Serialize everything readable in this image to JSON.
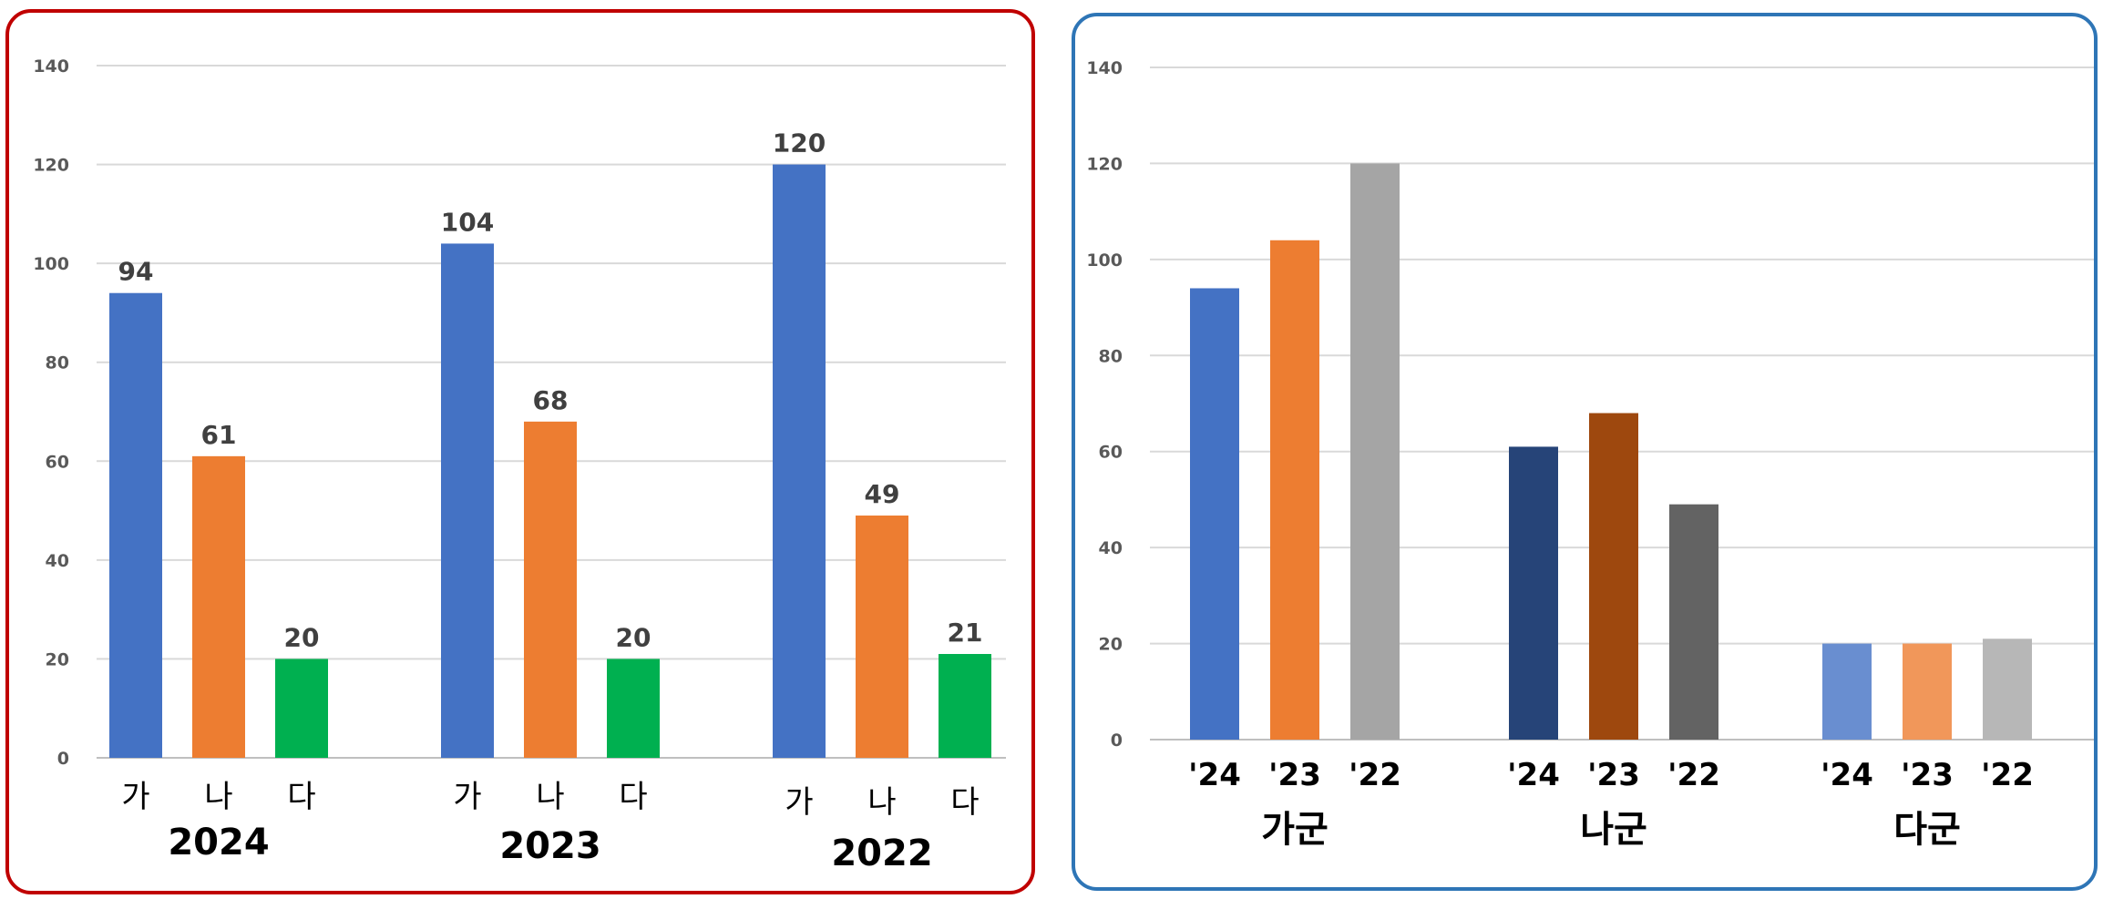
{
  "chart_data": [
    {
      "type": "bar",
      "groups": [
        "2024",
        "2023",
        "2022"
      ],
      "categories": [
        "가",
        "나",
        "다"
      ],
      "series": [
        {
          "color": "#4472c4",
          "values": [
            94,
            104,
            120
          ]
        },
        {
          "color": "#ed7d31",
          "values": [
            61,
            68,
            49
          ]
        },
        {
          "color": "#00b050",
          "values": [
            20,
            20,
            21
          ]
        }
      ],
      "data_labels": true,
      "ylim": [
        0,
        140
      ],
      "yticks": [
        "0",
        "20",
        "40",
        "60",
        "80",
        "100",
        "120",
        "140"
      ],
      "grid": true,
      "border_color": "#c00000"
    },
    {
      "type": "bar",
      "groups": [
        "가군",
        "나군",
        "다군"
      ],
      "categories": [
        "'24",
        "'23",
        "'22"
      ],
      "values": [
        [
          94,
          104,
          120
        ],
        [
          61,
          68,
          49
        ],
        [
          20,
          20,
          21
        ]
      ],
      "colors": [
        [
          "#4472c4",
          "#ed7d31",
          "#a5a5a5"
        ],
        [
          "#264478",
          "#9e480e",
          "#636363"
        ],
        [
          "#698ed0",
          "#f1975a",
          "#b7b7b7"
        ]
      ],
      "data_labels": false,
      "ylim": [
        0,
        140
      ],
      "yticks": [
        "0",
        "20",
        "40",
        "60",
        "80",
        "100",
        "120",
        "140"
      ],
      "grid": true,
      "border_color": "#2e75b6"
    }
  ]
}
